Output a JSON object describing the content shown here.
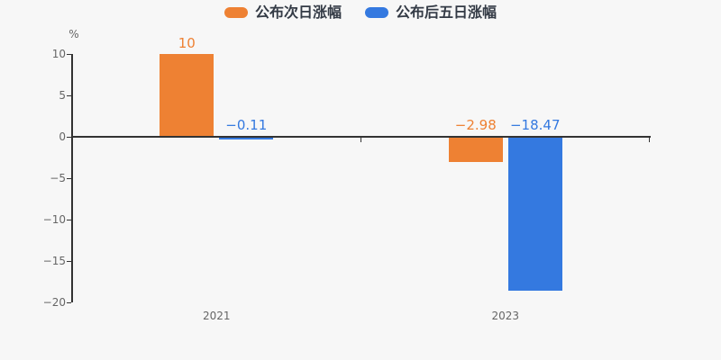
{
  "page": {
    "background_color": "#f7f7f7"
  },
  "chart_data": {
    "type": "bar",
    "categories": [
      "2021",
      "2023"
    ],
    "series": [
      {
        "name": "公布次日涨幅",
        "color": "#ee8133",
        "values": [
          10,
          -2.98
        ],
        "value_labels": [
          "10",
          "−2.98"
        ]
      },
      {
        "name": "公布后五日涨幅",
        "color": "#3479e0",
        "values": [
          -0.11,
          -18.47
        ],
        "value_labels": [
          "−0.11",
          "−18.47"
        ]
      }
    ],
    "title": "",
    "xlabel": "",
    "ylabel": "%",
    "ylim": [
      -20,
      10
    ],
    "yticks": [
      10,
      5,
      0,
      -5,
      -10,
      -15,
      -20
    ],
    "ytick_labels": [
      "10",
      "5",
      "0",
      "−5",
      "−10",
      "−15",
      "−20"
    ],
    "legend_position": "top",
    "grid": false,
    "axis_color": "#333333",
    "tick_label_color": "#666666"
  }
}
